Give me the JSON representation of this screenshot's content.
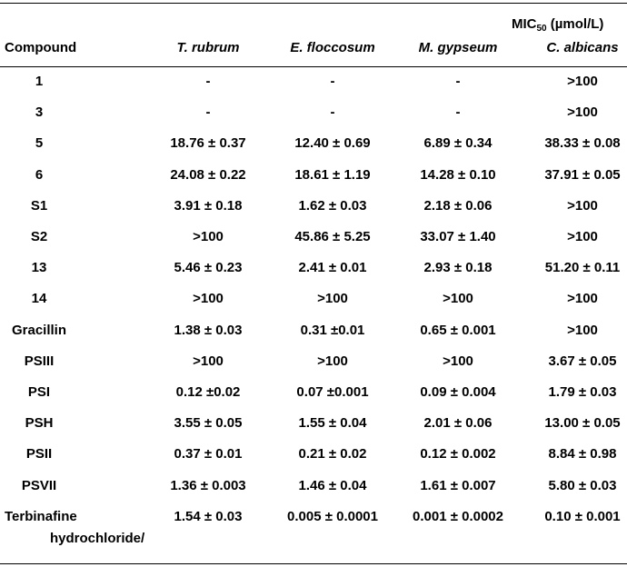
{
  "table": {
    "unit_header": {
      "prefix": "MIC",
      "sub": "50",
      "suffix": " (µmol/L)"
    },
    "columns": [
      "Compound",
      "T. rubrum",
      "E. floccosum",
      "M. gypseum",
      "C. albicans"
    ],
    "rows": [
      {
        "compound": "1",
        "values": [
          "-",
          "-",
          "-",
          ">100"
        ]
      },
      {
        "compound": "3",
        "values": [
          "-",
          "-",
          "-",
          ">100"
        ]
      },
      {
        "compound": "5",
        "values": [
          "18.76 ± 0.37",
          "12.40 ± 0.69",
          "6.89 ± 0.34",
          "38.33 ± 0.08"
        ]
      },
      {
        "compound": "6",
        "values": [
          "24.08 ± 0.22",
          "18.61 ± 1.19",
          "14.28 ± 0.10",
          "37.91 ± 0.05"
        ]
      },
      {
        "compound": "S1",
        "values": [
          "3.91 ± 0.18",
          "1.62 ± 0.03",
          "2.18 ± 0.06",
          ">100"
        ]
      },
      {
        "compound": "S2",
        "values": [
          ">100",
          "45.86 ± 5.25",
          "33.07 ± 1.40",
          ">100"
        ]
      },
      {
        "compound": "13",
        "values": [
          "5.46 ± 0.23",
          "2.41 ± 0.01",
          "2.93 ± 0.18",
          "51.20 ± 0.11"
        ]
      },
      {
        "compound": "14",
        "values": [
          ">100",
          ">100",
          ">100",
          ">100"
        ]
      },
      {
        "compound": "Gracillin",
        "values": [
          "1.38 ± 0.03",
          "0.31 ±0.01",
          "0.65 ± 0.001",
          ">100"
        ]
      },
      {
        "compound": "PSIII",
        "values": [
          ">100",
          ">100",
          ">100",
          "3.67 ± 0.05"
        ]
      },
      {
        "compound": "PSI",
        "values": [
          "0.12 ±0.02",
          "0.07 ±0.001",
          "0.09 ± 0.004",
          "1.79 ± 0.03"
        ]
      },
      {
        "compound": "PSH",
        "values": [
          "3.55 ± 0.05",
          "1.55 ± 0.04",
          "2.01 ± 0.06",
          "13.00 ± 0.05"
        ]
      },
      {
        "compound": "PSII",
        "values": [
          "0.37 ± 0.01",
          "0.21 ± 0.02",
          "0.12 ± 0.002",
          "8.84 ± 0.98"
        ]
      },
      {
        "compound": "PSVII",
        "values": [
          "1.36 ± 0.003",
          "1.46 ± 0.04",
          "1.61 ± 0.007",
          "5.80 ± 0.03"
        ]
      },
      {
        "compound": "Terbinafine",
        "values": [
          "1.54 ± 0.03",
          "0.005 ± 0.0001",
          "0.001 ± 0.0002",
          "0.10 ± 0.001"
        ]
      }
    ],
    "footnote_line": "hydrochloride/"
  }
}
